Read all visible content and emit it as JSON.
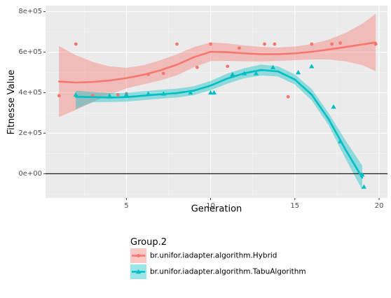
{
  "chart_data": {
    "type": "scatter",
    "xlabel": "Generation",
    "ylabel": "Fitnesse Value",
    "xlim": [
      0.2,
      20.5
    ],
    "ylim": [
      -120000,
      830000
    ],
    "x_ticks": [
      5,
      10,
      15,
      20
    ],
    "x_tick_labels": [
      "5",
      "10",
      "15",
      "20"
    ],
    "y_ticks": [
      0,
      200000,
      400000,
      600000,
      800000
    ],
    "y_tick_labels": [
      "0e+00",
      "2e+05",
      "4e+05",
      "6e+05",
      "8e+05"
    ],
    "reference_line_y": 0,
    "grid": true,
    "legend": {
      "title": "Group.2",
      "position": "bottom"
    },
    "series": [
      {
        "name": "br.unifor.iadapter.algorithm.Hybrid",
        "color": "#F8766D",
        "marker": "circle",
        "points": [
          [
            1,
            385000
          ],
          [
            2,
            640000
          ],
          [
            3,
            385000
          ],
          [
            4.5,
            390000
          ],
          [
            5,
            395000
          ],
          [
            6.3,
            490000
          ],
          [
            7.2,
            495000
          ],
          [
            8,
            640000
          ],
          [
            9.2,
            525000
          ],
          [
            10,
            640000
          ],
          [
            11,
            530000
          ],
          [
            11.7,
            620000
          ],
          [
            13.2,
            640000
          ],
          [
            13.8,
            640000
          ],
          [
            14.6,
            380000
          ],
          [
            16,
            640000
          ],
          [
            17.2,
            640000
          ],
          [
            17.7,
            645000
          ],
          [
            19.8,
            640000
          ]
        ],
        "smooth": [
          [
            1,
            455000
          ],
          [
            2,
            450000
          ],
          [
            3,
            453000
          ],
          [
            4,
            460000
          ],
          [
            5,
            472000
          ],
          [
            6,
            488000
          ],
          [
            7,
            510000
          ],
          [
            8,
            538000
          ],
          [
            9,
            575000
          ],
          [
            10,
            602000
          ],
          [
            11,
            600000
          ],
          [
            12,
            594000
          ],
          [
            13,
            590000
          ],
          [
            14,
            590000
          ],
          [
            15,
            594000
          ],
          [
            16,
            602000
          ],
          [
            17,
            613000
          ],
          [
            18,
            625000
          ],
          [
            19,
            638000
          ],
          [
            19.8,
            648000
          ]
        ],
        "ribbon_upper": [
          [
            1,
            630000
          ],
          [
            2,
            585000
          ],
          [
            3,
            552000
          ],
          [
            4,
            530000
          ],
          [
            5,
            523000
          ],
          [
            6,
            535000
          ],
          [
            7,
            560000
          ],
          [
            8,
            590000
          ],
          [
            9,
            625000
          ],
          [
            10,
            648000
          ],
          [
            11,
            643000
          ],
          [
            12,
            633000
          ],
          [
            13,
            626000
          ],
          [
            14,
            623000
          ],
          [
            15,
            628000
          ],
          [
            16,
            640000
          ],
          [
            17,
            662000
          ],
          [
            18,
            695000
          ],
          [
            19,
            740000
          ],
          [
            19.8,
            790000
          ]
        ],
        "ribbon_lower": [
          [
            1,
            280000
          ],
          [
            2,
            315000
          ],
          [
            3,
            354000
          ],
          [
            4,
            390000
          ],
          [
            5,
            421000
          ],
          [
            6,
            441000
          ],
          [
            7,
            460000
          ],
          [
            8,
            486000
          ],
          [
            9,
            525000
          ],
          [
            10,
            556000
          ],
          [
            11,
            557000
          ],
          [
            12,
            555000
          ],
          [
            13,
            554000
          ],
          [
            14,
            557000
          ],
          [
            15,
            560000
          ],
          [
            16,
            564000
          ],
          [
            17,
            564000
          ],
          [
            18,
            555000
          ],
          [
            19,
            536000
          ],
          [
            19.8,
            506000
          ]
        ]
      },
      {
        "name": "br.unifor.iadapter.algorithm.TabuAlgorithm",
        "color": "#00BFC4",
        "marker": "triangle",
        "points": [
          [
            2,
            390000
          ],
          [
            4,
            385000
          ],
          [
            5,
            390000
          ],
          [
            6.3,
            395000
          ],
          [
            7.2,
            395000
          ],
          [
            8.8,
            400000
          ],
          [
            10,
            400000
          ],
          [
            10.2,
            400000
          ],
          [
            11.3,
            490000
          ],
          [
            12,
            495000
          ],
          [
            12.7,
            495000
          ],
          [
            13.7,
            525000
          ],
          [
            15.2,
            500000
          ],
          [
            16,
            530000
          ],
          [
            17.3,
            330000
          ],
          [
            17.7,
            160000
          ],
          [
            19,
            -5000
          ],
          [
            19.1,
            -65000
          ]
        ],
        "smooth": [
          [
            2,
            380000
          ],
          [
            3,
            378000
          ],
          [
            4,
            376000
          ],
          [
            5,
            378000
          ],
          [
            6,
            385000
          ],
          [
            7,
            392000
          ],
          [
            8,
            398000
          ],
          [
            9,
            410000
          ],
          [
            10,
            435000
          ],
          [
            11,
            470000
          ],
          [
            12,
            496000
          ],
          [
            13,
            512000
          ],
          [
            14,
            505000
          ],
          [
            15,
            465000
          ],
          [
            16,
            390000
          ],
          [
            17,
            270000
          ],
          [
            18,
            120000
          ],
          [
            19,
            -20000
          ]
        ],
        "ribbon_upper": [
          [
            2,
            410000
          ],
          [
            3,
            403000
          ],
          [
            4,
            398000
          ],
          [
            5,
            400000
          ],
          [
            6,
            407000
          ],
          [
            7,
            414000
          ],
          [
            8,
            420000
          ],
          [
            9,
            432000
          ],
          [
            10,
            458000
          ],
          [
            11,
            495000
          ],
          [
            12,
            521000
          ],
          [
            13,
            539000
          ],
          [
            14,
            530000
          ],
          [
            15,
            490000
          ],
          [
            16,
            418000
          ],
          [
            17,
            300000
          ],
          [
            18,
            165000
          ],
          [
            19,
            40000
          ]
        ],
        "ribbon_lower": [
          [
            2,
            320000
          ],
          [
            3,
            353000
          ],
          [
            4,
            354000
          ],
          [
            5,
            356000
          ],
          [
            6,
            363000
          ],
          [
            7,
            370000
          ],
          [
            8,
            376000
          ],
          [
            9,
            388000
          ],
          [
            10,
            412000
          ],
          [
            11,
            445000
          ],
          [
            12,
            471000
          ],
          [
            13,
            485000
          ],
          [
            14,
            480000
          ],
          [
            15,
            440000
          ],
          [
            16,
            362000
          ],
          [
            17,
            240000
          ],
          [
            18,
            75000
          ],
          [
            19,
            -80000
          ]
        ]
      }
    ]
  }
}
